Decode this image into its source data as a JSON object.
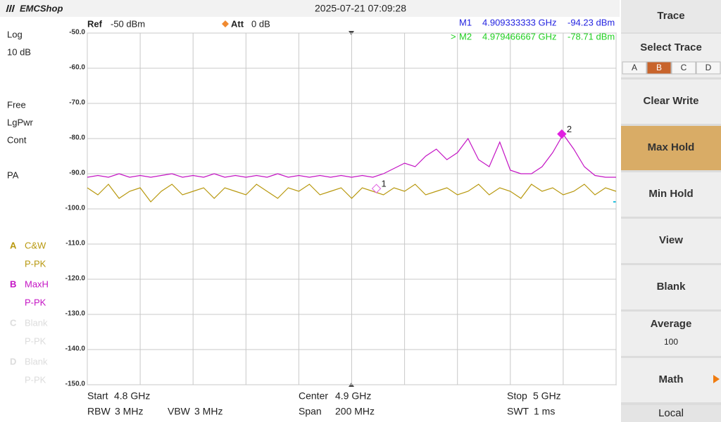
{
  "header": {
    "logo": "EMCShop",
    "timestamp": "2025-07-21 07:09:28"
  },
  "status": [
    "Log",
    "10 dB",
    "Free",
    "LgPwr",
    "Cont",
    "PA"
  ],
  "chart_data": {
    "type": "line",
    "ref_label": "Ref",
    "ref_value": "-50 dBm",
    "att_label": "Att",
    "att_value": "0 dB",
    "x": [
      4.8,
      4.804,
      4.808,
      4.812,
      4.816,
      4.82,
      4.824,
      4.828,
      4.832,
      4.836,
      4.84,
      4.844,
      4.848,
      4.852,
      4.856,
      4.86,
      4.864,
      4.868,
      4.872,
      4.876,
      4.88,
      4.884,
      4.888,
      4.892,
      4.896,
      4.9,
      4.904,
      4.908,
      4.912,
      4.916,
      4.92,
      4.924,
      4.928,
      4.932,
      4.936,
      4.94,
      4.944,
      4.948,
      4.952,
      4.956,
      4.96,
      4.964,
      4.968,
      4.972,
      4.976,
      4.98,
      4.984,
      4.988,
      4.992,
      4.996,
      5.0
    ],
    "xlim": [
      4.8,
      5.0
    ],
    "xticks": [
      4.8,
      4.82,
      4.84,
      4.86,
      4.88,
      4.9,
      4.92,
      4.94,
      4.96,
      4.98,
      5.0
    ],
    "ylim": [
      -150,
      -50
    ],
    "yticks": [
      {
        "value": -50,
        "label": "-50.0"
      },
      {
        "value": -60,
        "label": "-60.0"
      },
      {
        "value": -70,
        "label": "-70.0"
      },
      {
        "value": -80,
        "label": "-80.0"
      },
      {
        "value": -90,
        "label": "-90.0"
      },
      {
        "value": -100,
        "label": "-100.0"
      },
      {
        "value": -110,
        "label": "-110.0"
      },
      {
        "value": -120,
        "label": "-120.0"
      },
      {
        "value": -130,
        "label": "-130.0"
      },
      {
        "value": -140,
        "label": "-140.0"
      },
      {
        "value": -150,
        "label": "-150.0"
      }
    ],
    "grid": true,
    "series": [
      {
        "letter": "A",
        "name": "C&W",
        "detector": "P-PK",
        "color": "#b8980e",
        "values": [
          -94,
          -96,
          -93,
          -97,
          -95,
          -94,
          -98,
          -95,
          -93,
          -96,
          -95,
          -94,
          -97,
          -94,
          -95,
          -96,
          -93,
          -95,
          -97,
          -94,
          -95,
          -93,
          -96,
          -95,
          -94,
          -97,
          -94,
          -95,
          -96,
          -94,
          -95,
          -93,
          -96,
          -95,
          -94,
          -96,
          -95,
          -93,
          -96,
          -94,
          -95,
          -97,
          -93,
          -95,
          -94,
          -96,
          -95,
          -93,
          -96,
          -94,
          -95
        ]
      },
      {
        "letter": "B",
        "name": "MaxH",
        "detector": "P-PK",
        "color": "#c414c4",
        "values": [
          -91,
          -90.5,
          -91,
          -90,
          -91,
          -90.5,
          -91,
          -90.5,
          -90,
          -91,
          -90.5,
          -91,
          -90,
          -91,
          -90.5,
          -91,
          -90.5,
          -91,
          -90,
          -91,
          -90.5,
          -91,
          -90.5,
          -91,
          -90.5,
          -91,
          -90.5,
          -91,
          -90,
          -88.5,
          -87,
          -88,
          -85,
          -83,
          -86,
          -84,
          -80,
          -86,
          -88,
          -81,
          -89,
          -90,
          -90,
          -88,
          -84,
          -78.8,
          -83,
          -88,
          -90.5,
          -91,
          -91
        ]
      }
    ],
    "inactive_traces": [
      {
        "letter": "C",
        "name": "Blank",
        "detector": "P-PK"
      },
      {
        "letter": "D",
        "name": "Blank",
        "detector": "P-PK"
      }
    ],
    "markers": [
      {
        "name": "M1",
        "marker_label": "1",
        "x": 4.909333333,
        "value": -94.23,
        "x_label": "4.909333333 GHz",
        "value_label": "-94.23 dBm",
        "text_color": "#2323e0",
        "color": "#e060e0",
        "filled": false
      },
      {
        "name": "M2",
        "active_label": ">",
        "marker_label": "2",
        "x": 4.979466667,
        "value": -78.71,
        "x_label": "4.979466667 GHz",
        "value_label": "-78.71 dBm",
        "text_color": "#22d022",
        "color": "#e020e0",
        "filled": true
      }
    ]
  },
  "footer": [
    {
      "label": "Start",
      "value": "4.8 GHz"
    },
    {
      "label": "RBW",
      "value": "3 MHz"
    },
    {
      "label": "VBW",
      "value": "3 MHz"
    },
    {
      "label": "Center",
      "value": "4.9 GHz"
    },
    {
      "label": "Span",
      "value": "200 MHz"
    },
    {
      "label": "Stop",
      "value": "5 GHz"
    },
    {
      "label": "SWT",
      "value": "1 ms"
    }
  ],
  "softkeys": {
    "title": "Trace",
    "select_trace": {
      "label": "Select Trace",
      "tabs": [
        "A",
        "B",
        "C",
        "D"
      ],
      "selected": 1
    },
    "buttons": [
      {
        "label": "Clear Write"
      },
      {
        "label": "Max Hold",
        "active": true
      },
      {
        "label": "Min Hold"
      },
      {
        "label": "View"
      },
      {
        "label": "Blank"
      },
      {
        "label": "Average",
        "value": "100"
      },
      {
        "label": "Math",
        "submenu": true
      }
    ],
    "local": "Local"
  }
}
